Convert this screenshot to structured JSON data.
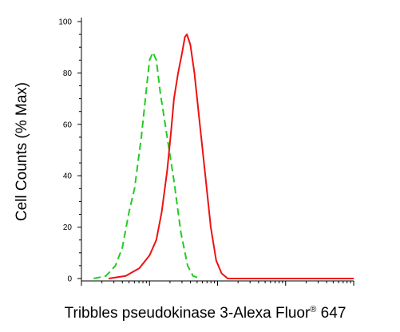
{
  "chart_data": {
    "type": "line",
    "title": "",
    "xlabel": "Tribbles pseudokinase 3-Alexa Fluor",
    "xlabel_superscript": "®",
    "xlabel_suffix": " 647",
    "ylabel": "Cell Counts (% Max)",
    "x_scale": "log",
    "x_log_decades": [
      0,
      4
    ],
    "ylim": [
      0,
      100
    ],
    "y_ticks": [
      "0",
      "20",
      "40",
      "60",
      "80",
      "100"
    ],
    "grid": false,
    "legend": "none",
    "series": [
      {
        "color": "#22cc22",
        "dash": "dashed",
        "points": [
          [
            0.18,
            0
          ],
          [
            0.36,
            1
          ],
          [
            0.5,
            5
          ],
          [
            0.6,
            12
          ],
          [
            0.7,
            26
          ],
          [
            0.78,
            35
          ],
          [
            0.88,
            55
          ],
          [
            0.96,
            75
          ],
          [
            1.0,
            85
          ],
          [
            1.05,
            88
          ],
          [
            1.1,
            85
          ],
          [
            1.16,
            72
          ],
          [
            1.26,
            55
          ],
          [
            1.36,
            38
          ],
          [
            1.46,
            18
          ],
          [
            1.56,
            5
          ],
          [
            1.64,
            1
          ],
          [
            1.75,
            0
          ]
        ]
      },
      {
        "color": "#ee1111",
        "dash": "solid",
        "points": [
          [
            0.4,
            0
          ],
          [
            0.65,
            1
          ],
          [
            0.85,
            4
          ],
          [
            1.0,
            9
          ],
          [
            1.1,
            15
          ],
          [
            1.18,
            26
          ],
          [
            1.26,
            42
          ],
          [
            1.32,
            58
          ],
          [
            1.36,
            70
          ],
          [
            1.42,
            80
          ],
          [
            1.48,
            88
          ],
          [
            1.52,
            94
          ],
          [
            1.55,
            95
          ],
          [
            1.6,
            91
          ],
          [
            1.66,
            80
          ],
          [
            1.74,
            60
          ],
          [
            1.82,
            40
          ],
          [
            1.9,
            20
          ],
          [
            1.98,
            7
          ],
          [
            2.06,
            2
          ],
          [
            2.15,
            0
          ],
          [
            2.4,
            0
          ],
          [
            4.0,
            0
          ]
        ]
      }
    ]
  }
}
